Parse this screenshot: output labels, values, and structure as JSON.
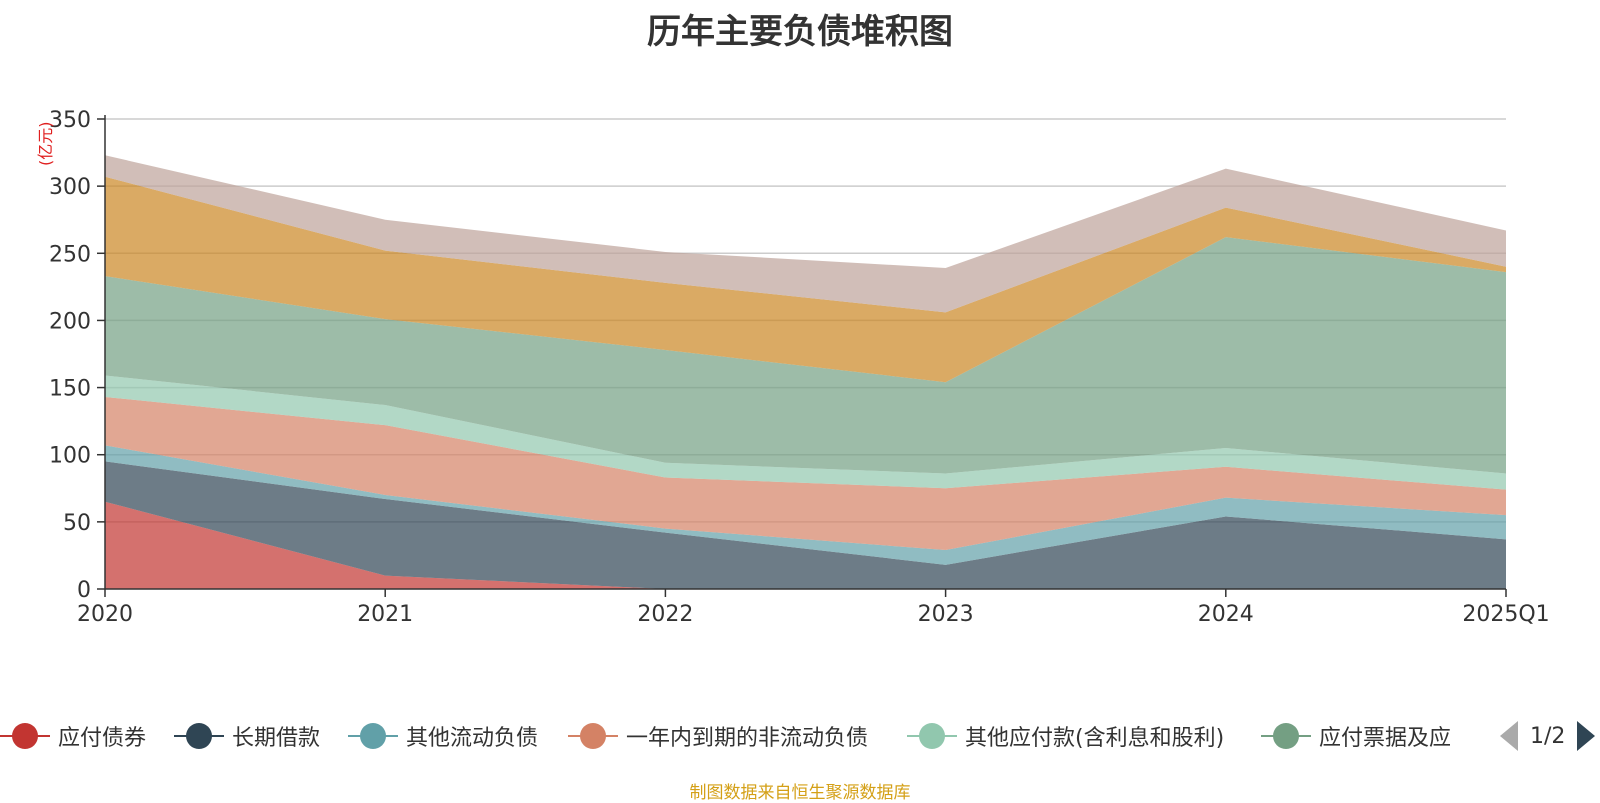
{
  "chart_data": {
    "type": "area",
    "stacked": true,
    "title": "历年主要负债堆积图",
    "unit_label": "(亿元)",
    "categories": [
      "2020",
      "2021",
      "2022",
      "2023",
      "2024",
      "2025Q1"
    ],
    "ylim": [
      0,
      350
    ],
    "yticks": [
      0,
      50,
      100,
      150,
      200,
      250,
      300,
      350
    ],
    "grid": true,
    "series": [
      {
        "name": "应付债券",
        "color": "#c23531",
        "values": [
          65,
          10,
          0,
          0,
          0,
          0
        ]
      },
      {
        "name": "长期借款",
        "color": "#2f4554",
        "values": [
          30,
          57,
          42,
          18,
          54,
          37
        ]
      },
      {
        "name": "其他流动负债",
        "color": "#61a0a8",
        "values": [
          12,
          3,
          3,
          11,
          14,
          18
        ]
      },
      {
        "name": "一年内到期的非流动负债",
        "color": "#d48265",
        "values": [
          36,
          52,
          38,
          46,
          23,
          19
        ]
      },
      {
        "name": "其他应付款(含利息和股利)",
        "color": "#91c7ae",
        "values": [
          16,
          15,
          11,
          11,
          14,
          12
        ]
      },
      {
        "name": "应付票据及应付账款",
        "color": "#749f83",
        "values": [
          74,
          64,
          84,
          68,
          157,
          150
        ]
      },
      {
        "name": "",
        "color": "#ca8622",
        "values": [
          74,
          51,
          50,
          52,
          22,
          4
        ]
      },
      {
        "name": "",
        "color": "#bda29a",
        "values": [
          16,
          23,
          23,
          33,
          29,
          27
        ]
      }
    ]
  },
  "legend": {
    "items": [
      {
        "label": "应付债券",
        "color": "#c23531"
      },
      {
        "label": "长期借款",
        "color": "#2f4554"
      },
      {
        "label": "其他流动负债",
        "color": "#61a0a8"
      },
      {
        "label": "一年内到期的非流动负债",
        "color": "#d48265"
      },
      {
        "label": "其他应付款(含利息和股利)",
        "color": "#91c7ae"
      },
      {
        "label": "应付票据及应",
        "color": "#749f83"
      }
    ],
    "page": "1/2",
    "prev_icon": "triangle-left-icon",
    "next_icon": "triangle-right-icon"
  },
  "source_note": "制图数据来自恒生聚源数据库"
}
